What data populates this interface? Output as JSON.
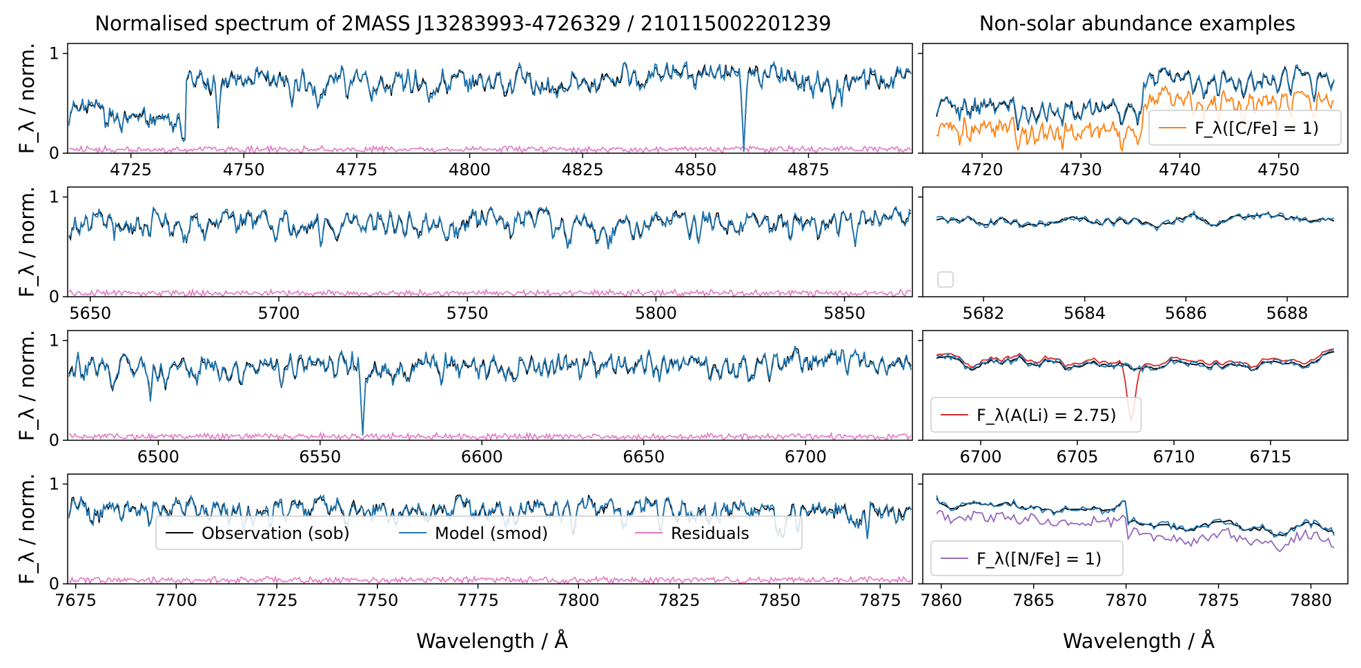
{
  "colors": {
    "observation": "#000000",
    "model": "#1f77b4",
    "residuals": "#e377c2",
    "carbon": "#ff7f0e",
    "lithium": "#d62728",
    "nitrogen": "#9467bd"
  },
  "chart_data": {
    "type": "line",
    "title_left": "Normalised spectrum of 2MASS J13283993-4726329 / 210115002201239",
    "title_right": "Non-solar abundance examples",
    "ylabel": "F_λ / norm.",
    "xlabel": "Wavelength / Å",
    "legend_main": {
      "location": "lower-center of bottom-left panel",
      "entries": [
        "Observation (sob)",
        "Model (smod)",
        "Residuals"
      ]
    },
    "left_panels": [
      {
        "band": "blue",
        "xlim": [
          4711,
          4898
        ],
        "ylim": [
          0,
          1.1
        ],
        "xticks": [
          4725,
          4750,
          4775,
          4800,
          4825,
          4850,
          4875
        ],
        "yticks": [
          0,
          1
        ],
        "features": [
          {
            "type": "step_up",
            "wavelength": 4737,
            "depth": 0.45
          },
          {
            "type": "line",
            "wavelength": 4744,
            "depth": 0.75
          },
          {
            "type": "line",
            "wavelength": 4861,
            "depth": 0.95
          }
        ]
      },
      {
        "band": "green",
        "xlim": [
          5644,
          5868
        ],
        "ylim": [
          0,
          1.1
        ],
        "xticks": [
          5650,
          5700,
          5750,
          5800,
          5850
        ],
        "yticks": [
          0,
          1
        ],
        "features": [
          {
            "type": "line",
            "wavelength": 5656,
            "depth": 0.4
          },
          {
            "type": "line",
            "wavelength": 5711,
            "depth": 0.5
          },
          {
            "type": "line",
            "wavelength": 5853,
            "depth": 0.5
          }
        ]
      },
      {
        "band": "red",
        "xlim": [
          6472,
          6733
        ],
        "ylim": [
          0,
          1.1
        ],
        "xticks": [
          6500,
          6550,
          6600,
          6650,
          6700
        ],
        "yticks": [
          0,
          1
        ],
        "features": [
          {
            "type": "line",
            "wavelength": 6497,
            "depth": 0.6
          },
          {
            "type": "line",
            "wavelength": 6563,
            "depth": 0.95
          }
        ]
      },
      {
        "band": "ir",
        "xlim": [
          7673,
          7883
        ],
        "ylim": [
          0,
          1.1
        ],
        "xticks": [
          7675,
          7700,
          7725,
          7750,
          7775,
          7800,
          7825,
          7850,
          7875
        ],
        "yticks": [
          0,
          1
        ],
        "features": [
          {
            "type": "line",
            "wavelength": 7872,
            "depth": 0.55
          }
        ]
      }
    ],
    "right_panels": [
      {
        "xlim": [
          4714,
          4757
        ],
        "ylim": [
          0,
          1.1
        ],
        "xticks": [
          4720,
          4730,
          4740,
          4750
        ],
        "yticks": [
          0,
          1
        ],
        "extra_series": {
          "name": "F_λ([C/Fe] = 1)",
          "color_key": "carbon",
          "offset": -0.22
        },
        "legend_location": "lower-right"
      },
      {
        "xlim": [
          5680.8,
          5689.2
        ],
        "ylim": [
          0,
          1.1
        ],
        "xticks": [
          5682,
          5684,
          5686,
          5688
        ],
        "yticks": [
          0,
          1
        ],
        "extra_series": null,
        "legend_location": "lower-left (empty)"
      },
      {
        "xlim": [
          6697,
          6719
        ],
        "ylim": [
          0,
          1.1
        ],
        "xticks": [
          6700,
          6705,
          6710,
          6715
        ],
        "yticks": [
          0,
          1
        ],
        "extra_series": {
          "name": "F_λ(A(Li) = 2.75)",
          "color_key": "lithium",
          "line_wavelength": 6707.8,
          "line_depth": 0.55
        },
        "legend_location": "lower-left"
      },
      {
        "xlim": [
          7859,
          7882
        ],
        "ylim": [
          0,
          1.1
        ],
        "xticks": [
          7860,
          7865,
          7870,
          7875,
          7880
        ],
        "yticks": [
          0,
          1
        ],
        "extra_series": {
          "name": "F_λ([N/Fe] = 1)",
          "color_key": "nitrogen",
          "offset": -0.12
        },
        "legend_location": "lower-left"
      }
    ]
  }
}
